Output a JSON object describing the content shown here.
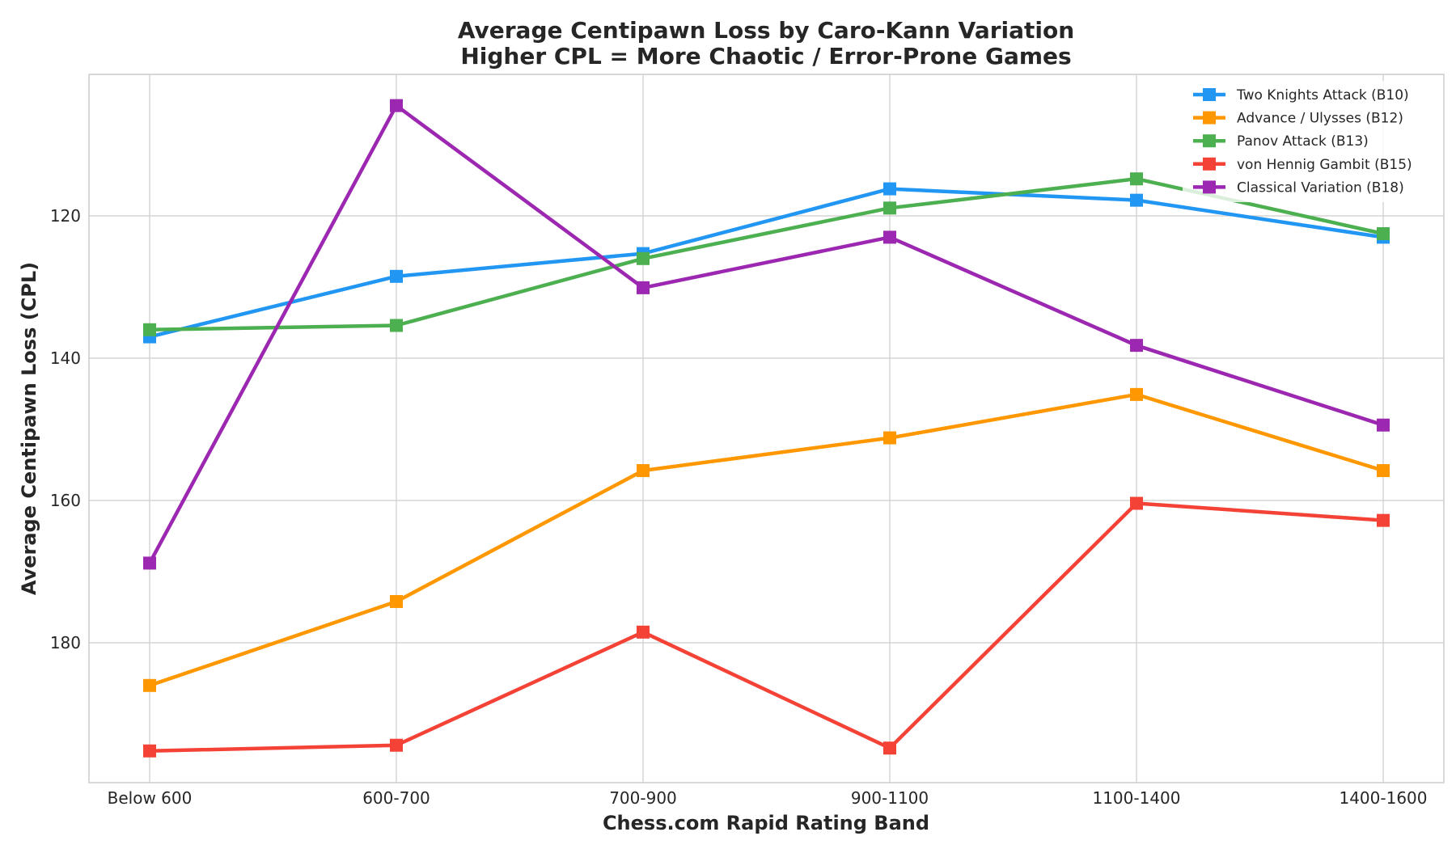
{
  "chart_data": {
    "type": "line",
    "title": "Average Centipawn Loss by Caro-Kann Variation",
    "subtitle": "Higher CPL = More Chaotic / Error-Prone Games",
    "xlabel": "Chess.com Rapid Rating Band",
    "ylabel": "Average Centipawn Loss (CPL)",
    "categories": [
      "Below 600",
      "600-700",
      "700-900",
      "900-1100",
      "1100-1400",
      "1400-1600"
    ],
    "yticks": [
      120,
      140,
      160,
      180
    ],
    "ylim": [
      200,
      100
    ],
    "y_axis_inverted": true,
    "grid": true,
    "legend_position": "top-right",
    "series": [
      {
        "name": "Two Knights Attack (B10)",
        "color": "#2196F3",
        "values": [
          137.0,
          128.5,
          125.3,
          116.2,
          117.8,
          123.0
        ]
      },
      {
        "name": "Advance / Ulysses (B12)",
        "color": "#FF9800",
        "values": [
          186.0,
          174.2,
          155.8,
          151.2,
          145.1,
          155.8
        ]
      },
      {
        "name": "Panov Attack (B13)",
        "color": "#4CAF50",
        "values": [
          136.0,
          135.4,
          126.0,
          118.9,
          114.8,
          122.5
        ]
      },
      {
        "name": "von Hennig Gambit (B15)",
        "color": "#F44336",
        "values": [
          195.2,
          194.4,
          178.5,
          194.8,
          160.4,
          162.8
        ]
      },
      {
        "name": "Classical Variation (B18)",
        "color": "#9C27B0",
        "values": [
          168.8,
          104.5,
          130.1,
          123.0,
          138.2,
          149.4
        ]
      }
    ]
  }
}
